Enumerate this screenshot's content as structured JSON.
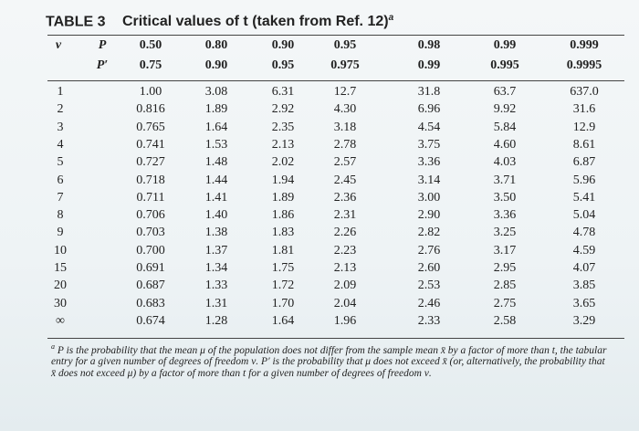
{
  "header": {
    "label": "TABLE 3",
    "title": "Critical values of t (taken from Ref. 12)",
    "note_mark": "a"
  },
  "table": {
    "nu_label": "ν",
    "p_label": "P",
    "p_values": [
      "0.50",
      "0.80",
      "0.90",
      "0.95",
      "0.98",
      "0.99",
      "0.999"
    ],
    "p_prime_label": "P′",
    "p_prime_values": [
      "0.75",
      "0.90",
      "0.95",
      "0.975",
      "0.99",
      "0.995",
      "0.9995"
    ],
    "rows": [
      [
        "1",
        "1.00",
        "3.08",
        "6.31",
        "12.7",
        "31.8",
        "63.7",
        "637.0"
      ],
      [
        "2",
        "0.816",
        "1.89",
        "2.92",
        "4.30",
        "6.96",
        "9.92",
        "31.6"
      ],
      [
        "3",
        "0.765",
        "1.64",
        "2.35",
        "3.18",
        "4.54",
        "5.84",
        "12.9"
      ],
      [
        "4",
        "0.741",
        "1.53",
        "2.13",
        "2.78",
        "3.75",
        "4.60",
        "8.61"
      ],
      [
        "5",
        "0.727",
        "1.48",
        "2.02",
        "2.57",
        "3.36",
        "4.03",
        "6.87"
      ],
      [
        "6",
        "0.718",
        "1.44",
        "1.94",
        "2.45",
        "3.14",
        "3.71",
        "5.96"
      ],
      [
        "7",
        "0.711",
        "1.41",
        "1.89",
        "2.36",
        "3.00",
        "3.50",
        "5.41"
      ],
      [
        "8",
        "0.706",
        "1.40",
        "1.86",
        "2.31",
        "2.90",
        "3.36",
        "5.04"
      ],
      [
        "9",
        "0.703",
        "1.38",
        "1.83",
        "2.26",
        "2.82",
        "3.25",
        "4.78"
      ],
      [
        "10",
        "0.700",
        "1.37",
        "1.81",
        "2.23",
        "2.76",
        "3.17",
        "4.59"
      ],
      [
        "15",
        "0.691",
        "1.34",
        "1.75",
        "2.13",
        "2.60",
        "2.95",
        "4.07"
      ],
      [
        "20",
        "0.687",
        "1.33",
        "1.72",
        "2.09",
        "2.53",
        "2.85",
        "3.85"
      ],
      [
        "30",
        "0.683",
        "1.31",
        "1.70",
        "2.04",
        "2.46",
        "2.75",
        "3.65"
      ],
      [
        "∞",
        "0.674",
        "1.28",
        "1.64",
        "1.96",
        "2.33",
        "2.58",
        "3.29"
      ]
    ]
  },
  "footnote": {
    "mark": "a",
    "text": "P is the probability that the mean μ of the population does not differ from the sample mean x̄ by a factor of more than t, the tabular entry for a given number of degrees of freedom ν. P′ is the probability that μ does not exceed x̄ (or, alternatively, the probability that x̄ does not exceed μ) by a factor of more than t for a given number of degrees of freedom ν."
  }
}
